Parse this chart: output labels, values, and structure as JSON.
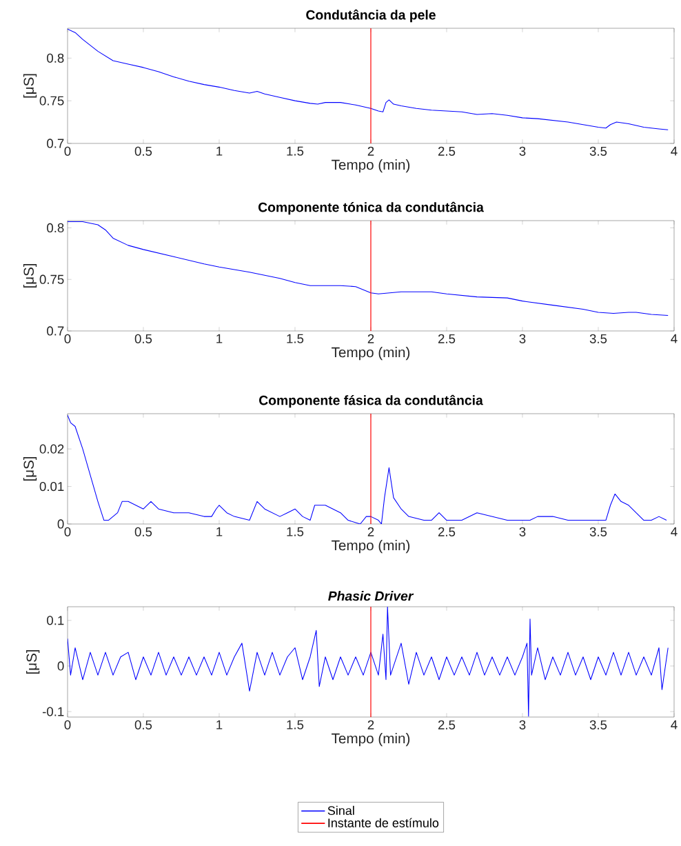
{
  "chart_data": [
    {
      "type": "line",
      "title": "Condutância da pele",
      "xlabel": "Tempo (min)",
      "ylabel": "[μS]",
      "xlim": [
        0,
        4
      ],
      "ylim": [
        0.7,
        0.835
      ],
      "xticks": [
        0,
        0.5,
        1,
        1.5,
        2,
        2.5,
        3,
        3.5,
        4
      ],
      "yticks": [
        0.7,
        0.75,
        0.8
      ],
      "series": [
        {
          "color": "#0000ff",
          "x": [
            0,
            0.05,
            0.1,
            0.2,
            0.3,
            0.4,
            0.5,
            0.6,
            0.7,
            0.8,
            0.9,
            1.0,
            1.05,
            1.1,
            1.2,
            1.25,
            1.3,
            1.4,
            1.5,
            1.6,
            1.65,
            1.7,
            1.8,
            1.9,
            2.0,
            2.05,
            2.08,
            2.1,
            2.12,
            2.15,
            2.2,
            2.3,
            2.4,
            2.5,
            2.6,
            2.7,
            2.8,
            2.9,
            3.0,
            3.1,
            3.2,
            3.3,
            3.4,
            3.5,
            3.55,
            3.58,
            3.62,
            3.7,
            3.8,
            3.9,
            3.96
          ],
          "values": [
            0.834,
            0.83,
            0.822,
            0.808,
            0.797,
            0.793,
            0.789,
            0.784,
            0.778,
            0.773,
            0.769,
            0.766,
            0.764,
            0.762,
            0.759,
            0.761,
            0.758,
            0.754,
            0.75,
            0.747,
            0.746,
            0.748,
            0.748,
            0.745,
            0.741,
            0.738,
            0.737,
            0.748,
            0.751,
            0.746,
            0.744,
            0.741,
            0.739,
            0.738,
            0.737,
            0.734,
            0.735,
            0.733,
            0.73,
            0.729,
            0.727,
            0.725,
            0.722,
            0.719,
            0.718,
            0.722,
            0.725,
            0.723,
            0.719,
            0.717,
            0.716
          ]
        }
      ],
      "ref_lines": [
        {
          "axis": "x",
          "value": 2,
          "color": "#ff0000"
        }
      ]
    },
    {
      "type": "line",
      "title": "Componente tónica da condutância",
      "xlabel": "Tempo (min)",
      "ylabel": "[μS]",
      "xlim": [
        0,
        4
      ],
      "ylim": [
        0.7,
        0.807
      ],
      "xticks": [
        0,
        0.5,
        1,
        1.5,
        2,
        2.5,
        3,
        3.5,
        4
      ],
      "yticks": [
        0.7,
        0.75,
        0.8
      ],
      "series": [
        {
          "color": "#0000ff",
          "x": [
            0,
            0.1,
            0.2,
            0.25,
            0.3,
            0.4,
            0.5,
            0.7,
            0.9,
            1.0,
            1.2,
            1.4,
            1.5,
            1.6,
            1.8,
            1.9,
            1.95,
            2.0,
            2.05,
            2.2,
            2.4,
            2.5,
            2.7,
            2.9,
            3.0,
            3.2,
            3.4,
            3.5,
            3.6,
            3.7,
            3.75,
            3.85,
            3.96
          ],
          "values": [
            0.806,
            0.806,
            0.803,
            0.798,
            0.79,
            0.783,
            0.779,
            0.772,
            0.765,
            0.762,
            0.757,
            0.751,
            0.747,
            0.744,
            0.744,
            0.743,
            0.74,
            0.737,
            0.736,
            0.738,
            0.738,
            0.736,
            0.733,
            0.732,
            0.729,
            0.725,
            0.721,
            0.718,
            0.717,
            0.718,
            0.718,
            0.716,
            0.715
          ]
        }
      ],
      "ref_lines": [
        {
          "axis": "x",
          "value": 2,
          "color": "#ff0000"
        }
      ]
    },
    {
      "type": "line",
      "title": "Componente fásica da condutância",
      "xlabel": "Tempo (min)",
      "ylabel": "[μS]",
      "xlim": [
        0,
        4
      ],
      "ylim": [
        0,
        0.0294
      ],
      "xticks": [
        0,
        0.5,
        1,
        1.5,
        2,
        2.5,
        3,
        3.5,
        4
      ],
      "yticks": [
        0,
        0.01,
        0.02
      ],
      "series": [
        {
          "color": "#0000ff",
          "x": [
            0,
            0.02,
            0.05,
            0.1,
            0.15,
            0.2,
            0.24,
            0.27,
            0.3,
            0.33,
            0.36,
            0.4,
            0.45,
            0.5,
            0.55,
            0.6,
            0.7,
            0.8,
            0.9,
            0.95,
            0.98,
            1.0,
            1.05,
            1.1,
            1.2,
            1.25,
            1.3,
            1.4,
            1.45,
            1.5,
            1.55,
            1.6,
            1.63,
            1.7,
            1.8,
            1.85,
            1.93,
            1.97,
            2.0,
            2.05,
            2.07,
            2.09,
            2.12,
            2.15,
            2.2,
            2.25,
            2.35,
            2.4,
            2.45,
            2.5,
            2.6,
            2.65,
            2.7,
            2.8,
            2.9,
            3.0,
            3.05,
            3.1,
            3.2,
            3.3,
            3.4,
            3.5,
            3.55,
            3.58,
            3.61,
            3.65,
            3.7,
            3.8,
            3.85,
            3.9,
            3.95
          ],
          "values": [
            0.029,
            0.027,
            0.026,
            0.02,
            0.013,
            0.006,
            0.001,
            0.001,
            0.002,
            0.003,
            0.006,
            0.006,
            0.005,
            0.004,
            0.006,
            0.004,
            0.003,
            0.003,
            0.002,
            0.002,
            0.004,
            0.005,
            0.003,
            0.002,
            0.001,
            0.006,
            0.004,
            0.002,
            0.003,
            0.004,
            0.002,
            0.001,
            0.005,
            0.005,
            0.003,
            0.001,
            0.0,
            0.002,
            0.002,
            0.001,
            0.0,
            0.007,
            0.015,
            0.007,
            0.004,
            0.002,
            0.001,
            0.001,
            0.003,
            0.001,
            0.001,
            0.002,
            0.003,
            0.002,
            0.001,
            0.001,
            0.001,
            0.002,
            0.002,
            0.001,
            0.001,
            0.001,
            0.001,
            0.005,
            0.008,
            0.006,
            0.005,
            0.001,
            0.001,
            0.002,
            0.001
          ]
        }
      ],
      "ref_lines": [
        {
          "axis": "x",
          "value": 2,
          "color": "#ff0000"
        }
      ]
    },
    {
      "type": "line",
      "title": "*Phasic Driver*",
      "xlabel": "Tempo (min)",
      "ylabel": "[μS]",
      "xlim": [
        0,
        4
      ],
      "ylim": [
        -0.112,
        0.13
      ],
      "xticks": [
        0,
        0.5,
        1,
        1.5,
        2,
        2.5,
        3,
        3.5,
        4
      ],
      "yticks": [
        -0.1,
        0,
        0.1
      ],
      "legend": "bottom",
      "series": [
        {
          "name": "Sinal",
          "color": "#0000ff",
          "x": [
            0,
            0.02,
            0.05,
            0.1,
            0.15,
            0.2,
            0.25,
            0.3,
            0.35,
            0.4,
            0.45,
            0.5,
            0.55,
            0.6,
            0.65,
            0.7,
            0.75,
            0.8,
            0.85,
            0.9,
            0.95,
            1.0,
            1.05,
            1.1,
            1.15,
            1.2,
            1.25,
            1.3,
            1.35,
            1.4,
            1.45,
            1.5,
            1.55,
            1.6,
            1.64,
            1.66,
            1.7,
            1.75,
            1.8,
            1.85,
            1.9,
            1.95,
            2.0,
            2.05,
            2.08,
            2.1,
            2.11,
            2.13,
            2.2,
            2.25,
            2.3,
            2.35,
            2.4,
            2.45,
            2.5,
            2.55,
            2.6,
            2.65,
            2.7,
            2.75,
            2.8,
            2.85,
            2.9,
            2.95,
            3.0,
            3.03,
            3.04,
            3.05,
            3.06,
            3.1,
            3.15,
            3.2,
            3.25,
            3.3,
            3.35,
            3.4,
            3.45,
            3.5,
            3.55,
            3.6,
            3.65,
            3.7,
            3.75,
            3.8,
            3.85,
            3.9,
            3.92,
            3.96
          ],
          "values": [
            0.06,
            -0.02,
            0.04,
            -0.03,
            0.03,
            -0.02,
            0.03,
            -0.02,
            0.02,
            0.03,
            -0.03,
            0.02,
            -0.02,
            0.03,
            -0.02,
            0.02,
            -0.02,
            0.02,
            -0.02,
            0.02,
            -0.02,
            0.03,
            -0.02,
            0.02,
            0.05,
            -0.055,
            0.03,
            -0.02,
            0.03,
            -0.02,
            0.02,
            0.04,
            -0.03,
            0.02,
            0.078,
            -0.045,
            0.02,
            -0.03,
            0.02,
            -0.02,
            0.02,
            -0.02,
            0.03,
            -0.02,
            0.07,
            -0.03,
            0.13,
            -0.02,
            0.05,
            -0.04,
            0.03,
            -0.02,
            0.02,
            -0.03,
            0.02,
            -0.02,
            0.02,
            -0.02,
            0.03,
            -0.02,
            0.02,
            -0.02,
            0.02,
            -0.02,
            0.02,
            0.05,
            -0.11,
            0.103,
            -0.02,
            0.04,
            -0.03,
            0.02,
            -0.02,
            0.03,
            -0.02,
            0.02,
            -0.03,
            0.02,
            -0.02,
            0.03,
            -0.02,
            0.03,
            -0.02,
            0.02,
            -0.02,
            0.04,
            -0.052,
            0.04
          ]
        }
      ],
      "ref_lines": [
        {
          "axis": "x",
          "value": 2,
          "color": "#ff0000",
          "label": "Instante de estímulo"
        }
      ]
    }
  ]
}
